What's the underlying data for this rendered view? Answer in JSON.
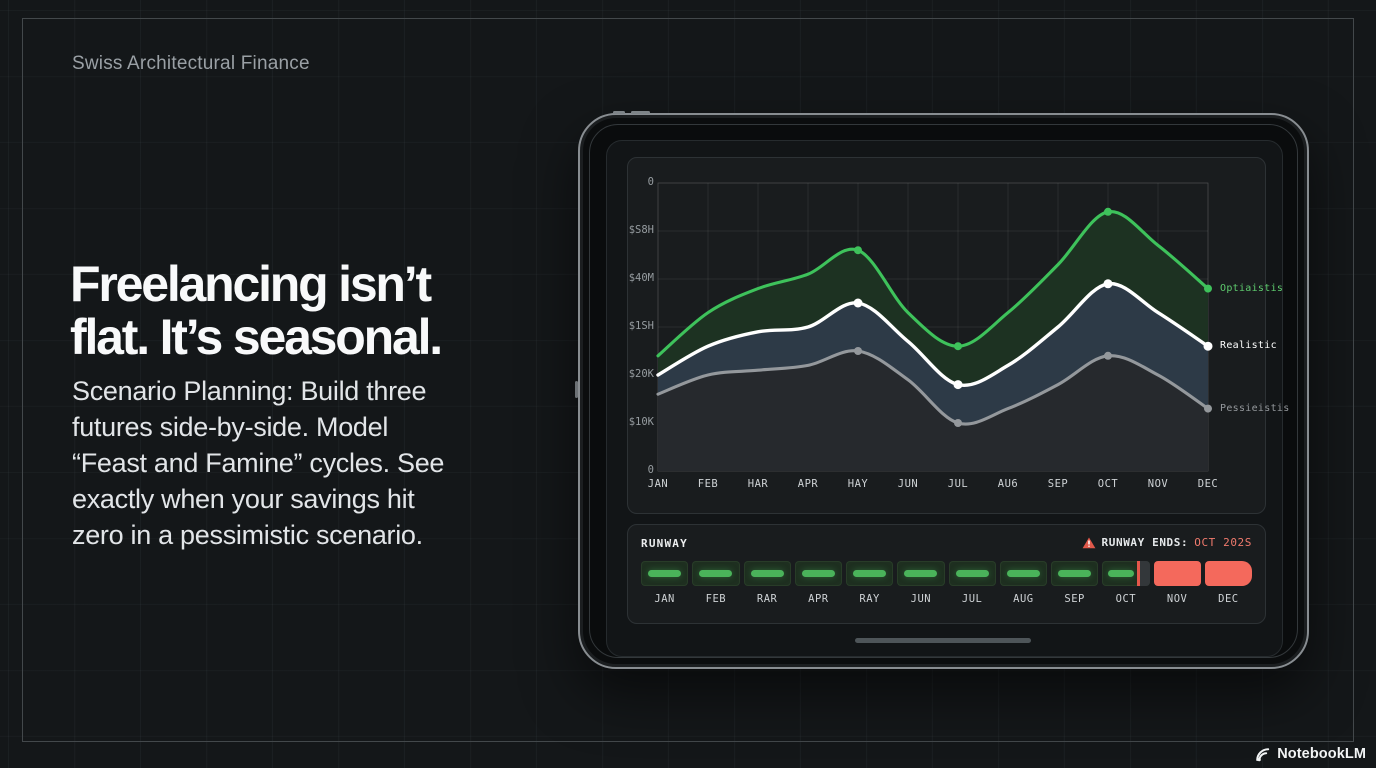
{
  "slide": {
    "eyebrow": "Swiss Architectural Finance",
    "title": "Freelancing isn’t\nflat. It’s seasonal.",
    "body": "Scenario Planning: Build three\nfutures side-by-side. Model\n“Feast and Famine” cycles. See\nexactly when your savings hit\nzero in a pessimistic scenario.",
    "brand": "NotebookLM"
  },
  "chart_data": {
    "type": "line",
    "title": "",
    "categories": [
      "JAN",
      "FEB",
      "HAR",
      "APR",
      "HAY",
      "JUN",
      "JUL",
      "AU6",
      "SEP",
      "OCT",
      "NOV",
      "DEC"
    ],
    "y_tick_labels_top_to_bottom": [
      "0",
      "$S8H",
      "$40M",
      "$1SH",
      "$20K",
      "$10K",
      "0"
    ],
    "ylim": [
      0,
      60
    ],
    "ylabel": "",
    "xlabel": "",
    "grid": true,
    "legend_position": "right",
    "point_marker_indices": [
      4,
      6,
      9,
      11
    ],
    "series": [
      {
        "name": "Optiaistis",
        "color": "#3ec25b",
        "fill": "#1d3222",
        "values": [
          24,
          33,
          38,
          41,
          46,
          33,
          26,
          33,
          43,
          54,
          47,
          38
        ]
      },
      {
        "name": "Realistic",
        "color": "#ffffff",
        "fill": "#2d3a47",
        "values": [
          20,
          26,
          29,
          30,
          35,
          27,
          18,
          22,
          30,
          39,
          33,
          26
        ]
      },
      {
        "name": "Pessieistis",
        "color": "#94989c",
        "fill": "#26292d",
        "values": [
          16,
          20,
          21,
          22,
          25,
          19,
          10,
          13,
          18,
          24,
          20,
          13
        ]
      }
    ]
  },
  "runway": {
    "title": "RUNWAY",
    "ends_label": "RUNWAY ENDS:",
    "ends_value": "OCT 202S",
    "months": [
      "JAN",
      "FEB",
      "RAR",
      "APR",
      "RAY",
      "JUN",
      "JUL",
      "AUG",
      "SEP",
      "OCT",
      "NOV",
      "DEC"
    ],
    "status": [
      "ok",
      "ok",
      "ok",
      "ok",
      "ok",
      "ok",
      "ok",
      "ok",
      "ok",
      "marker",
      "depleted",
      "depleted"
    ]
  },
  "colors": {
    "optimistic": "#3ec25b",
    "realistic": "#ffffff",
    "pessimistic": "#94989c",
    "runway_ok": "#4ab35a",
    "runway_depleted": "#f4695c",
    "warning": "#e0584a",
    "background": "#141719"
  }
}
